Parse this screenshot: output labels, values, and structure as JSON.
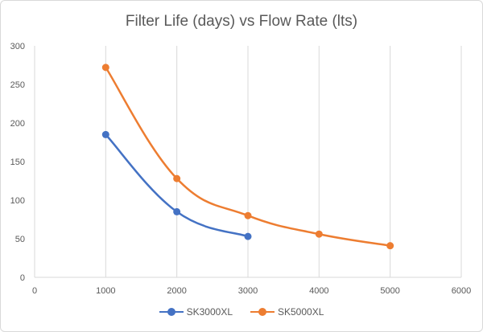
{
  "chart_data": {
    "type": "scatter",
    "title": "Filter Life (days) vs Flow Rate (lts)",
    "xlabel": "",
    "ylabel": "",
    "xlim": [
      0,
      6000
    ],
    "ylim": [
      0,
      300
    ],
    "x_ticks": [
      0,
      1000,
      2000,
      3000,
      4000,
      5000,
      6000
    ],
    "y_ticks": [
      0,
      50,
      100,
      150,
      200,
      250,
      300
    ],
    "grid": "vertical",
    "legend_position": "bottom",
    "line_style": "smoothed",
    "series": [
      {
        "name": "SK3000XL",
        "color": "#4472C4",
        "points": [
          [
            1000,
            185
          ],
          [
            2000,
            85
          ],
          [
            3000,
            53
          ]
        ]
      },
      {
        "name": "SK5000XL",
        "color": "#ED7D31",
        "points": [
          [
            1000,
            272
          ],
          [
            2000,
            128
          ],
          [
            3000,
            80
          ],
          [
            4000,
            56
          ],
          [
            5000,
            41
          ]
        ]
      }
    ]
  }
}
